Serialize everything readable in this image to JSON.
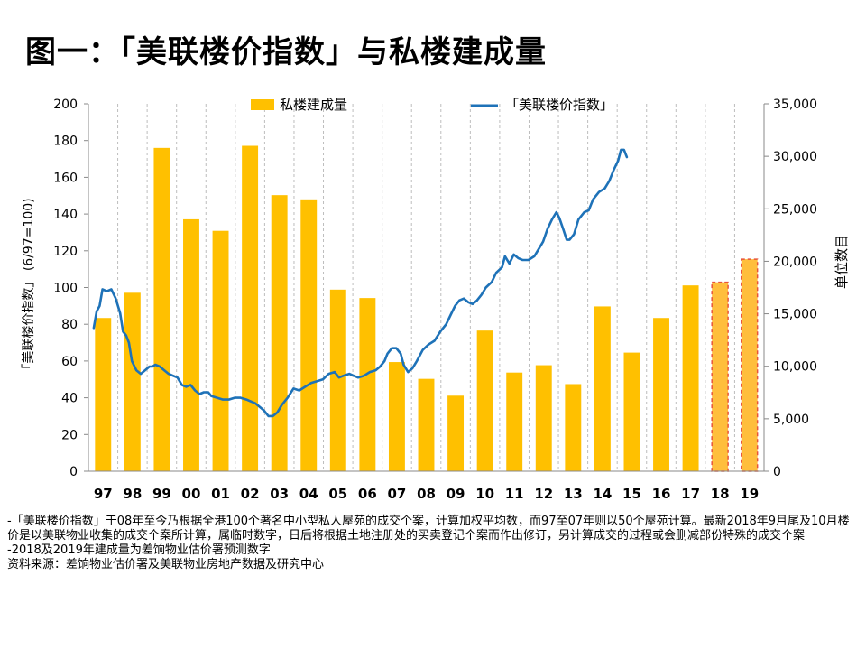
{
  "title": "图一：「美联楼价指数」与私楼建成量",
  "chart_data": {
    "type": "bar+line",
    "x_categories": [
      "97",
      "98",
      "99",
      "00",
      "01",
      "02",
      "03",
      "04",
      "05",
      "06",
      "07",
      "08",
      "09",
      "10",
      "11",
      "12",
      "13",
      "14",
      "15",
      "16",
      "17",
      "18",
      "19"
    ],
    "legend": {
      "bars": "私楼建成量",
      "line": "「美联楼价指数」"
    },
    "left_axis": {
      "label": "「美联楼价指数」 (6/97=100)",
      "min": 0,
      "max": 200,
      "ticks": [
        "0",
        "20",
        "40",
        "60",
        "80",
        "100",
        "120",
        "140",
        "160",
        "180",
        "200"
      ]
    },
    "right_axis": {
      "label": "单位数目",
      "min": 0,
      "max": 35000,
      "ticks": [
        "0",
        "5,000",
        "10,000",
        "15,000",
        "20,000",
        "25,000",
        "30,000",
        "35,000"
      ]
    },
    "completions": [
      14600,
      17000,
      30800,
      24000,
      22900,
      31000,
      26300,
      25900,
      17300,
      16500,
      10400,
      8800,
      7200,
      13400,
      9400,
      10100,
      8300,
      15700,
      11300,
      14600,
      17700,
      18000,
      20200
    ],
    "forecast_flags": [
      false,
      false,
      false,
      false,
      false,
      false,
      false,
      false,
      false,
      false,
      false,
      false,
      false,
      false,
      false,
      false,
      false,
      false,
      false,
      false,
      false,
      true,
      true
    ],
    "index_series": [
      [
        0.0,
        78
      ],
      [
        0.1,
        87
      ],
      [
        0.2,
        90
      ],
      [
        0.3,
        99
      ],
      [
        0.45,
        98
      ],
      [
        0.6,
        99
      ],
      [
        0.75,
        94
      ],
      [
        0.9,
        86
      ],
      [
        1.0,
        76
      ],
      [
        1.1,
        74
      ],
      [
        1.2,
        70
      ],
      [
        1.3,
        60
      ],
      [
        1.45,
        55
      ],
      [
        1.6,
        53
      ],
      [
        1.75,
        55
      ],
      [
        1.9,
        57
      ],
      [
        2.0,
        57
      ],
      [
        2.1,
        58
      ],
      [
        2.25,
        57
      ],
      [
        2.4,
        55
      ],
      [
        2.55,
        53
      ],
      [
        2.7,
        52
      ],
      [
        2.85,
        51
      ],
      [
        3.0,
        47
      ],
      [
        3.15,
        46
      ],
      [
        3.3,
        47
      ],
      [
        3.45,
        44
      ],
      [
        3.6,
        42
      ],
      [
        3.75,
        43
      ],
      [
        3.9,
        43
      ],
      [
        4.0,
        41
      ],
      [
        4.2,
        40
      ],
      [
        4.4,
        39
      ],
      [
        4.6,
        39
      ],
      [
        4.8,
        40
      ],
      [
        5.0,
        40
      ],
      [
        5.2,
        39
      ],
      [
        5.35,
        38
      ],
      [
        5.5,
        37
      ],
      [
        5.65,
        35
      ],
      [
        5.8,
        33
      ],
      [
        5.95,
        30
      ],
      [
        6.1,
        30
      ],
      [
        6.25,
        32
      ],
      [
        6.4,
        36
      ],
      [
        6.6,
        40
      ],
      [
        6.8,
        45
      ],
      [
        7.0,
        44
      ],
      [
        7.2,
        46
      ],
      [
        7.4,
        48
      ],
      [
        7.6,
        49
      ],
      [
        7.8,
        50
      ],
      [
        8.0,
        53
      ],
      [
        8.2,
        54
      ],
      [
        8.35,
        51
      ],
      [
        8.5,
        52
      ],
      [
        8.7,
        53
      ],
      [
        8.85,
        52
      ],
      [
        9.0,
        51
      ],
      [
        9.2,
        52
      ],
      [
        9.4,
        54
      ],
      [
        9.6,
        55
      ],
      [
        9.75,
        57
      ],
      [
        9.9,
        60
      ],
      [
        10.0,
        64
      ],
      [
        10.15,
        67
      ],
      [
        10.3,
        67
      ],
      [
        10.45,
        64
      ],
      [
        10.55,
        58
      ],
      [
        10.7,
        54
      ],
      [
        10.85,
        56
      ],
      [
        11.0,
        60
      ],
      [
        11.2,
        66
      ],
      [
        11.4,
        69
      ],
      [
        11.6,
        71
      ],
      [
        11.8,
        76
      ],
      [
        12.0,
        80
      ],
      [
        12.15,
        85
      ],
      [
        12.3,
        90
      ],
      [
        12.45,
        93
      ],
      [
        12.6,
        94
      ],
      [
        12.75,
        92
      ],
      [
        12.9,
        91
      ],
      [
        13.05,
        93
      ],
      [
        13.2,
        96
      ],
      [
        13.35,
        100
      ],
      [
        13.55,
        103
      ],
      [
        13.7,
        108
      ],
      [
        13.9,
        111
      ],
      [
        14.0,
        117
      ],
      [
        14.15,
        113
      ],
      [
        14.3,
        118
      ],
      [
        14.45,
        116
      ],
      [
        14.6,
        115
      ],
      [
        14.8,
        115
      ],
      [
        15.0,
        117
      ],
      [
        15.15,
        121
      ],
      [
        15.3,
        125
      ],
      [
        15.45,
        132
      ],
      [
        15.6,
        137
      ],
      [
        15.75,
        141
      ],
      [
        15.85,
        138
      ],
      [
        16.0,
        131
      ],
      [
        16.1,
        126
      ],
      [
        16.2,
        126
      ],
      [
        16.35,
        129
      ],
      [
        16.5,
        137
      ],
      [
        16.7,
        141
      ],
      [
        16.85,
        142
      ],
      [
        17.0,
        148
      ],
      [
        17.2,
        152
      ],
      [
        17.4,
        154
      ],
      [
        17.55,
        158
      ],
      [
        17.7,
        164
      ],
      [
        17.85,
        169
      ],
      [
        17.95,
        175
      ],
      [
        18.05,
        175
      ],
      [
        18.15,
        171
      ]
    ]
  }
}
